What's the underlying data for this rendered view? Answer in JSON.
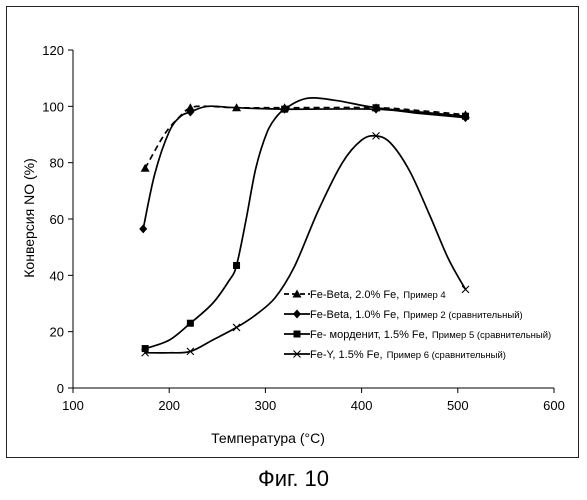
{
  "figure_caption": "Фиг. 10",
  "chart_data": {
    "type": "line",
    "xlabel": "Температура (°C)",
    "ylabel": "Конверсия NO (%)",
    "xlim": [
      100,
      600
    ],
    "ylim": [
      0,
      120
    ],
    "x_ticks": [
      "100",
      "200",
      "300",
      "400",
      "500",
      "600"
    ],
    "y_ticks": [
      "0",
      "20",
      "40",
      "60",
      "80",
      "100",
      "120"
    ],
    "grid": false,
    "legend_position": "lower-right inside plot",
    "series": [
      {
        "name": "Fe-Beta, 2.0% Fe, Пример 4",
        "legend_parts": [
          "Fe-Beta, 2.0% Fe,",
          "Пример 4"
        ],
        "marker": "triangle",
        "line": "dashed",
        "color": "#000000",
        "points": [
          [
            175,
            78
          ],
          [
            222,
            99.5
          ],
          [
            270,
            99.5
          ],
          [
            320,
            99.5
          ],
          [
            415,
            99.5
          ],
          [
            508,
            97
          ]
        ],
        "curve": [
          [
            175,
            78
          ],
          [
            195,
            90
          ],
          [
            210,
            96
          ],
          [
            222,
            99.5
          ],
          [
            240,
            100
          ],
          [
            270,
            99.5
          ],
          [
            320,
            99.5
          ],
          [
            415,
            99.5
          ],
          [
            460,
            98.5
          ],
          [
            508,
            97
          ]
        ]
      },
      {
        "name": "Fe-Beta, 1.0% Fe, Пример 2 (сравнительный)",
        "legend_parts": [
          "Fe-Beta, 1.0% Fe,",
          "Пример 2 (сравнительный)"
        ],
        "marker": "diamond",
        "line": "solid",
        "color": "#000000",
        "points": [
          [
            173,
            56.5
          ],
          [
            222,
            98
          ],
          [
            320,
            99
          ],
          [
            415,
            99
          ],
          [
            508,
            96
          ]
        ],
        "curve": [
          [
            173,
            56.5
          ],
          [
            185,
            76
          ],
          [
            200,
            91
          ],
          [
            212,
            96.5
          ],
          [
            222,
            98
          ],
          [
            240,
            100
          ],
          [
            270,
            99.5
          ],
          [
            320,
            99
          ],
          [
            415,
            99
          ],
          [
            460,
            97.5
          ],
          [
            508,
            96
          ]
        ]
      },
      {
        "name": "Fe- морденит, 1.5% Fe, Пример 5 (сравнительный)",
        "legend_parts": [
          "Fe- морденит, 1.5% Fe,",
          "Пример 5 (сравнительный)"
        ],
        "marker": "square",
        "line": "solid",
        "color": "#000000",
        "points": [
          [
            175,
            14
          ],
          [
            222,
            23
          ],
          [
            270,
            43.5
          ],
          [
            320,
            99
          ],
          [
            415,
            99.5
          ],
          [
            508,
            96.5
          ]
        ],
        "curve": [
          [
            175,
            14
          ],
          [
            200,
            17
          ],
          [
            222,
            23
          ],
          [
            245,
            30
          ],
          [
            262,
            38
          ],
          [
            270,
            43.5
          ],
          [
            280,
            60
          ],
          [
            290,
            78
          ],
          [
            302,
            91
          ],
          [
            312,
            96.5
          ],
          [
            320,
            99
          ],
          [
            335,
            102
          ],
          [
            350,
            103
          ],
          [
            375,
            102
          ],
          [
            415,
            99.5
          ],
          [
            460,
            98
          ],
          [
            508,
            96.5
          ]
        ]
      },
      {
        "name": "Fe-Y, 1.5% Fe, Пример 6 (сравнительный)",
        "legend_parts": [
          "Fe-Y, 1.5% Fe,",
          "Пример 6 (сравнительный)"
        ],
        "marker": "x",
        "line": "solid",
        "color": "#000000",
        "points": [
          [
            175,
            12.5
          ],
          [
            222,
            13
          ],
          [
            270,
            21.5
          ],
          [
            415,
            89.5
          ],
          [
            508,
            35
          ]
        ],
        "curve": [
          [
            175,
            12.5
          ],
          [
            200,
            12.5
          ],
          [
            222,
            13
          ],
          [
            245,
            17
          ],
          [
            270,
            21.5
          ],
          [
            290,
            26
          ],
          [
            310,
            32
          ],
          [
            330,
            43
          ],
          [
            355,
            63
          ],
          [
            380,
            80
          ],
          [
            400,
            88
          ],
          [
            415,
            89.5
          ],
          [
            430,
            87
          ],
          [
            450,
            77
          ],
          [
            470,
            62
          ],
          [
            490,
            46
          ],
          [
            508,
            35
          ]
        ]
      }
    ]
  }
}
